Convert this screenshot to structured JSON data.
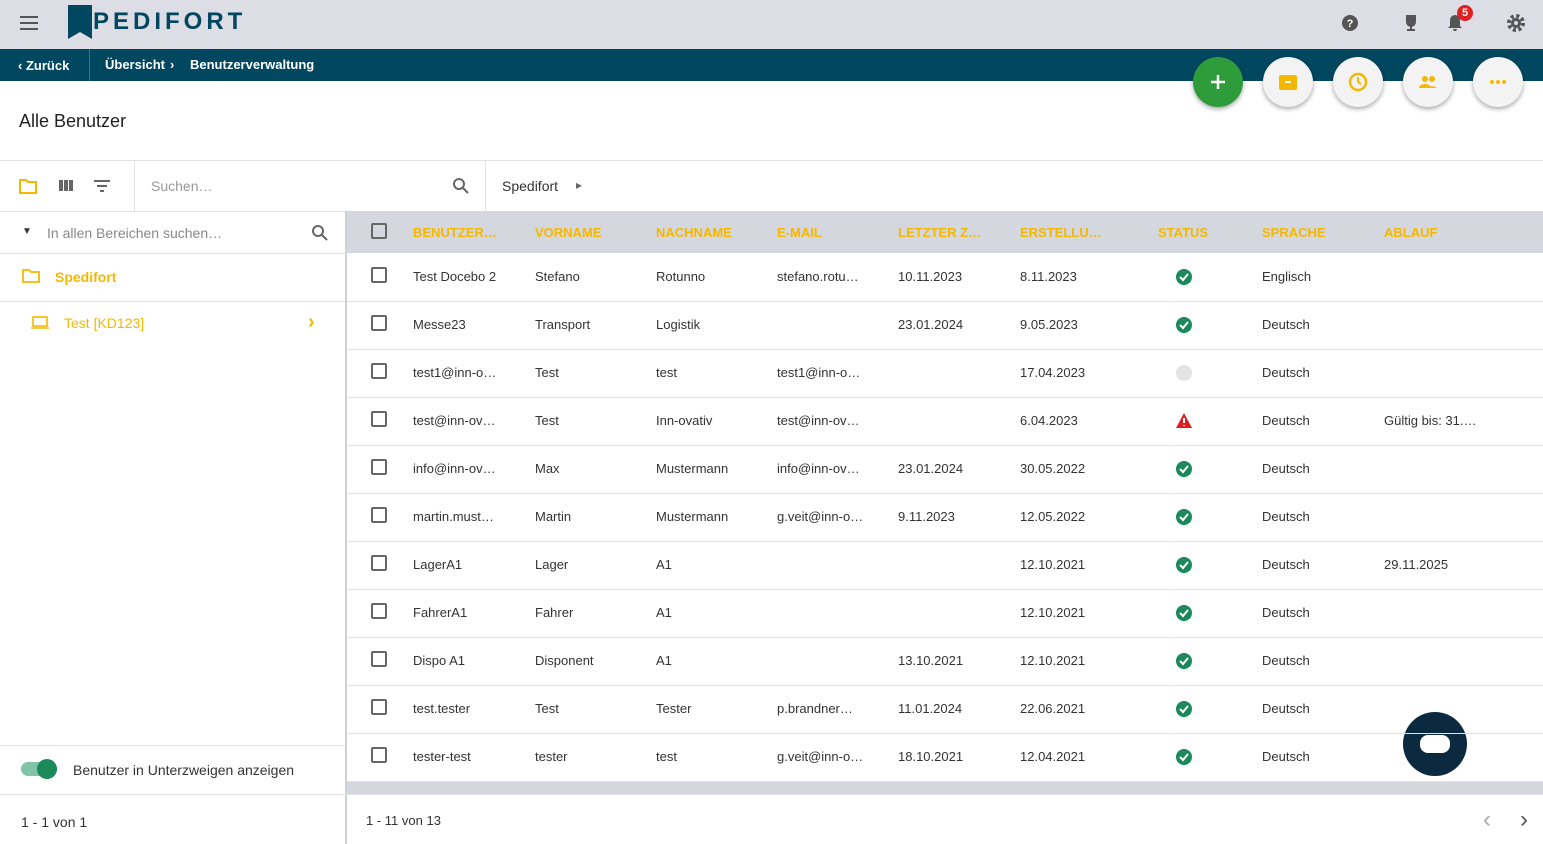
{
  "header": {
    "logo": "SPEDIFORT",
    "notification_count": "5"
  },
  "breadcrumb": {
    "back": "Zurück",
    "items": [
      "Übersicht",
      "Benutzerverwaltung"
    ]
  },
  "page_title": "Alle Benutzer",
  "toolbar": {
    "search_placeholder": "Suchen…",
    "path": "Spedifort"
  },
  "tree": {
    "search_placeholder": "In allen Bereichen suchen…",
    "root": "Spedifort",
    "children": [
      "Test [KD123]"
    ],
    "toggle_label": "Benutzer in Unterzweigen anzeigen",
    "pagination": "1 - 1 von 1"
  },
  "table": {
    "columns": [
      "BENUTZER…",
      "VORNAME",
      "NACHNAME",
      "E-MAIL",
      "LETZTER Z…",
      "ERSTELLU…",
      "STATUS",
      "SPRACHE",
      "ABLAUF"
    ],
    "rows": [
      [
        "Test Docebo 2",
        "Stefano",
        "Rotunno",
        "stefano.rotu…",
        "10.11.2023",
        "8.11.2023",
        "Englisch",
        null
      ],
      [
        "Messe23",
        "Transport",
        "Logistik",
        null,
        "23.01.2024",
        "9.05.2023",
        "Deutsch",
        null
      ],
      [
        "test1@inn-o…",
        "Test",
        "test",
        "test1@inn-o…",
        null,
        "17.04.2023",
        "Deutsch",
        null
      ],
      [
        "test@inn-ov…",
        "Test",
        "Inn-ovativ",
        "test@inn-ov…",
        null,
        "6.04.2023",
        "Deutsch",
        "Gültig bis: 31.…"
      ],
      [
        "info@inn-ov…",
        "Max",
        "Mustermann",
        "info@inn-ov…",
        "23.01.2024",
        "30.05.2022",
        "Deutsch",
        null
      ],
      [
        "martin.must…",
        "Martin",
        "Mustermann",
        "g.veit@inn-o…",
        "9.11.2023",
        "12.05.2022",
        "Deutsch",
        null
      ],
      [
        "LagerA1",
        "Lager",
        "A1",
        null,
        null,
        "12.10.2021",
        "Deutsch",
        "29.11.2025"
      ],
      [
        "FahrerA1",
        "Fahrer",
        "A1",
        null,
        null,
        "12.10.2021",
        "Deutsch",
        null
      ],
      [
        "Dispo A1",
        "Disponent",
        "A1",
        null,
        "13.10.2021",
        "12.10.2021",
        "Deutsch",
        null
      ],
      [
        "test.tester",
        "Test",
        "Tester",
        "p.brandner…",
        "11.01.2024",
        "22.06.2021",
        "Deutsch",
        null
      ],
      [
        "tester-test",
        "tester",
        "test",
        "g.veit@inn-o…",
        "18.10.2021",
        "12.04.2021",
        "Deutsch",
        null
      ]
    ],
    "status": [
      "ok",
      "ok",
      "inactive",
      "warning",
      "ok",
      "ok",
      "ok",
      "ok",
      "ok",
      "ok",
      "ok"
    ],
    "pagination": "1 - 11 von 13"
  }
}
